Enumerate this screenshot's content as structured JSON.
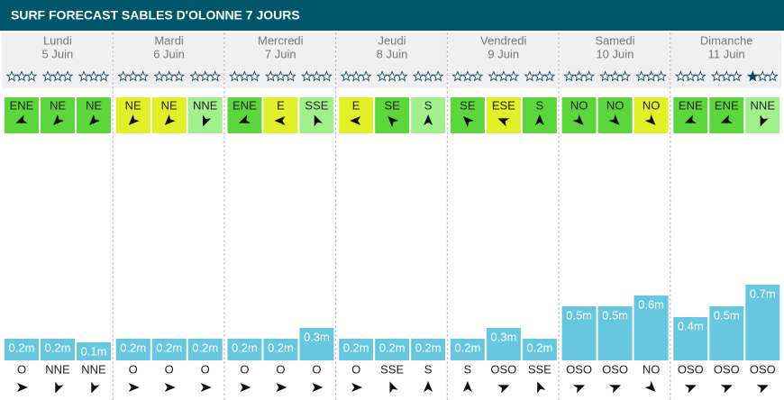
{
  "header": {
    "title": "SURF FORECAST SABLES D'OLONNE 7 JOURS"
  },
  "days": [
    {
      "name": "Lundi",
      "date": "5 Juin",
      "periods": [
        {
          "rating": 0,
          "wind": "ENE",
          "wind_color": "#5cd63c",
          "wave": {
            "value": 0.2,
            "label": "0.2m"
          },
          "swell": "O"
        },
        {
          "rating": 0,
          "wind": "NE",
          "wind_color": "#5cd63c",
          "wave": {
            "value": 0.2,
            "label": "0.2m"
          },
          "swell": "NNE"
        },
        {
          "rating": 0,
          "wind": "NE",
          "wind_color": "#5cd63c",
          "wave": {
            "value": 0.1,
            "label": "0.1m"
          },
          "swell": "NNE"
        }
      ]
    },
    {
      "name": "Mardi",
      "date": "6 Juin",
      "periods": [
        {
          "rating": 0,
          "wind": "NE",
          "wind_color": "#e2f02a",
          "wave": {
            "value": 0.2,
            "label": "0.2m"
          },
          "swell": "O"
        },
        {
          "rating": 0,
          "wind": "NE",
          "wind_color": "#e2f02a",
          "wave": {
            "value": 0.2,
            "label": "0.2m"
          },
          "swell": "O"
        },
        {
          "rating": 0,
          "wind": "NNE",
          "wind_color": "#a2f08c",
          "wave": {
            "value": 0.2,
            "label": "0.2m"
          },
          "swell": "O"
        }
      ]
    },
    {
      "name": "Mercredi",
      "date": "7 Juin",
      "periods": [
        {
          "rating": 0,
          "wind": "ENE",
          "wind_color": "#5cd63c",
          "wave": {
            "value": 0.2,
            "label": "0.2m"
          },
          "swell": "O"
        },
        {
          "rating": 0,
          "wind": "E",
          "wind_color": "#e2f02a",
          "wave": {
            "value": 0.2,
            "label": "0.2m"
          },
          "swell": "O"
        },
        {
          "rating": 0,
          "wind": "SSE",
          "wind_color": "#a2f08c",
          "wave": {
            "value": 0.3,
            "label": "0.3m"
          },
          "swell": "O"
        }
      ]
    },
    {
      "name": "Jeudi",
      "date": "8 Juin",
      "periods": [
        {
          "rating": 0,
          "wind": "E",
          "wind_color": "#e2f02a",
          "wave": {
            "value": 0.2,
            "label": "0.2m"
          },
          "swell": "O"
        },
        {
          "rating": 0,
          "wind": "SE",
          "wind_color": "#5cd63c",
          "wave": {
            "value": 0.2,
            "label": "0.2m"
          },
          "swell": "SSE"
        },
        {
          "rating": 0,
          "wind": "S",
          "wind_color": "#a2f08c",
          "wave": {
            "value": 0.2,
            "label": "0.2m"
          },
          "swell": "S"
        }
      ]
    },
    {
      "name": "Vendredi",
      "date": "9 Juin",
      "periods": [
        {
          "rating": 0,
          "wind": "SE",
          "wind_color": "#5cd63c",
          "wave": {
            "value": 0.2,
            "label": "0.2m"
          },
          "swell": "S"
        },
        {
          "rating": 0,
          "wind": "ESE",
          "wind_color": "#e2f02a",
          "wave": {
            "value": 0.3,
            "label": "0.3m"
          },
          "swell": "OSO"
        },
        {
          "rating": 0,
          "wind": "S",
          "wind_color": "#5cd63c",
          "wave": {
            "value": 0.2,
            "label": "0.2m"
          },
          "swell": "SSE"
        }
      ]
    },
    {
      "name": "Samedi",
      "date": "10 Juin",
      "periods": [
        {
          "rating": 0,
          "wind": "NO",
          "wind_color": "#5cd63c",
          "wave": {
            "value": 0.5,
            "label": "0.5m"
          },
          "swell": "OSO"
        },
        {
          "rating": 0,
          "wind": "NO",
          "wind_color": "#5cd63c",
          "wave": {
            "value": 0.5,
            "label": "0.5m"
          },
          "swell": "OSO"
        },
        {
          "rating": 0,
          "wind": "NO",
          "wind_color": "#e2f02a",
          "wave": {
            "value": 0.6,
            "label": "0.6m"
          },
          "swell": "NO"
        }
      ]
    },
    {
      "name": "Dimanche",
      "date": "11 Juin",
      "periods": [
        {
          "rating": 0,
          "wind": "ENE",
          "wind_color": "#5cd63c",
          "wave": {
            "value": 0.4,
            "label": "0.4m"
          },
          "swell": "OSO"
        },
        {
          "rating": 0,
          "wind": "ENE",
          "wind_color": "#5cd63c",
          "wave": {
            "value": 0.5,
            "label": "0.5m"
          },
          "swell": "OSO"
        },
        {
          "rating": 1,
          "wind": "NNE",
          "wind_color": "#a2f08c",
          "wave": {
            "value": 0.7,
            "label": "0.7m"
          },
          "swell": "OSO"
        }
      ]
    }
  ]
}
